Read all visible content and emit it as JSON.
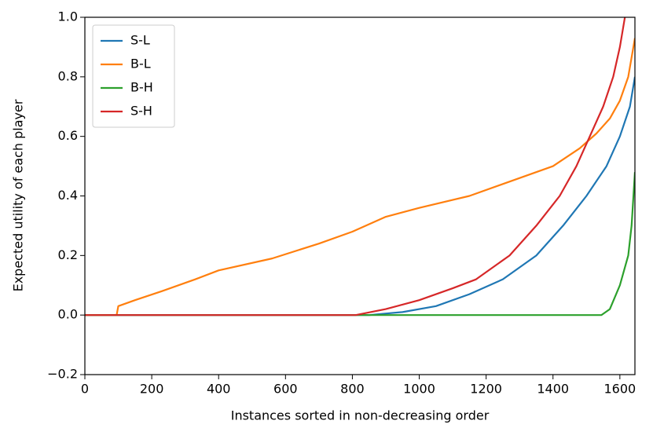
{
  "chart_data": {
    "type": "line",
    "x_label": "Instances sorted in non-decreasing order",
    "y_label": "Expected utility of each player",
    "xlim": [
      0,
      1645
    ],
    "ylim": [
      -0.2,
      1.0
    ],
    "xticks": [
      0,
      200,
      400,
      600,
      800,
      1000,
      1200,
      1400,
      1600
    ],
    "yticks": [
      {
        "value": -0.2,
        "label": "−0.2"
      },
      {
        "value": 0,
        "label": "0.0"
      },
      0.2,
      0.4,
      0.6,
      0.8,
      {
        "value": 1.0,
        "label": "1.0"
      }
    ],
    "legend": "upper left",
    "series": [
      {
        "name": "S-L",
        "color": "#1f77b4",
        "x": [
          0,
          850,
          950,
          1050,
          1150,
          1250,
          1350,
          1430,
          1500,
          1560,
          1600,
          1630,
          1645
        ],
        "values": [
          0,
          0,
          0.01,
          0.03,
          0.07,
          0.12,
          0.2,
          0.3,
          0.4,
          0.5,
          0.6,
          0.7,
          0.8
        ]
      },
      {
        "name": "B-L",
        "color": "#ff7f0e",
        "x": [
          0,
          95,
          100,
          150,
          230,
          330,
          400,
          560,
          700,
          800,
          900,
          1000,
          1150,
          1250,
          1400,
          1480,
          1530,
          1570,
          1600,
          1625,
          1645
        ],
        "values": [
          0,
          0,
          0.03,
          0.05,
          0.08,
          0.12,
          0.15,
          0.19,
          0.24,
          0.28,
          0.33,
          0.36,
          0.4,
          0.44,
          0.5,
          0.56,
          0.61,
          0.66,
          0.72,
          0.8,
          0.93
        ]
      },
      {
        "name": "B-H",
        "color": "#2ca02c",
        "x": [
          0,
          1545,
          1570,
          1600,
          1625,
          1635,
          1645
        ],
        "values": [
          0,
          0,
          0.02,
          0.1,
          0.2,
          0.3,
          0.48
        ]
      },
      {
        "name": "S-H",
        "color": "#d62728",
        "x": [
          0,
          810,
          900,
          1000,
          1100,
          1170,
          1270,
          1350,
          1420,
          1470,
          1510,
          1550,
          1580,
          1600,
          1615
        ],
        "values": [
          0,
          0,
          0.02,
          0.05,
          0.09,
          0.12,
          0.2,
          0.3,
          0.4,
          0.5,
          0.6,
          0.7,
          0.8,
          0.9,
          1.0
        ]
      }
    ]
  }
}
